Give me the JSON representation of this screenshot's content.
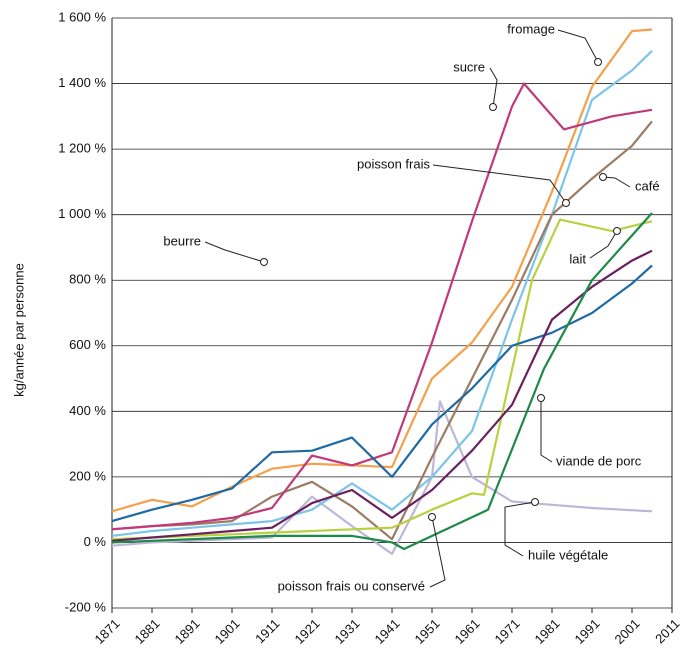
{
  "chart_data": {
    "type": "line",
    "y_label": "kg/année par personne",
    "xlim": [
      1871,
      2011
    ],
    "xticks": [
      1871,
      1881,
      1891,
      1901,
      1911,
      1921,
      1931,
      1941,
      1951,
      1961,
      1971,
      1981,
      1991,
      2001,
      2011
    ],
    "ylim": [
      -200,
      1600
    ],
    "yticks": [
      {
        "value": -200,
        "label": "-200 %"
      },
      {
        "value": 0,
        "label": "0 %"
      },
      {
        "value": 200,
        "label": "200 %"
      },
      {
        "value": 400,
        "label": "400 %"
      },
      {
        "value": 600,
        "label": "600 %"
      },
      {
        "value": 800,
        "label": "800 %"
      },
      {
        "value": 1000,
        "label": "1 000 %"
      },
      {
        "value": 1200,
        "label": "1 200 %"
      },
      {
        "value": 1400,
        "label": "1 400 %"
      },
      {
        "value": 1600,
        "label": "1 600 %"
      }
    ],
    "grid": true,
    "series": [
      {
        "name": "huile végétale",
        "color": "#bdb6d9",
        "x": [
          1871,
          1881,
          1891,
          1901,
          1911,
          1921,
          1931,
          1941,
          1951,
          1953,
          1961,
          1971,
          1981,
          1991,
          2006
        ],
        "values": [
          -10,
          0,
          5,
          10,
          15,
          140,
          50,
          -35,
          200,
          430,
          200,
          125,
          115,
          105,
          95
        ]
      },
      {
        "name": "fromage",
        "color": "#f5a04a",
        "x": [
          1871,
          1881,
          1891,
          1901,
          1911,
          1921,
          1931,
          1941,
          1951,
          1961,
          1971,
          1981,
          1991,
          2001,
          2006
        ],
        "values": [
          95,
          130,
          110,
          170,
          225,
          240,
          235,
          230,
          500,
          610,
          780,
          1070,
          1390,
          1560,
          1565
        ]
      },
      {
        "name": "poisson frais",
        "color": "#7cc4e8",
        "x": [
          1871,
          1881,
          1891,
          1901,
          1911,
          1921,
          1931,
          1941,
          1951,
          1961,
          1971,
          1981,
          1991,
          2001,
          2006
        ],
        "values": [
          20,
          35,
          45,
          55,
          65,
          100,
          180,
          100,
          200,
          340,
          680,
          1000,
          1350,
          1440,
          1500
        ]
      },
      {
        "name": "café",
        "color": "#9c7b62",
        "x": [
          1871,
          1881,
          1891,
          1901,
          1911,
          1921,
          1931,
          1941,
          1951,
          1961,
          1971,
          1981,
          1991,
          2001,
          2006
        ],
        "values": [
          40,
          50,
          55,
          65,
          140,
          185,
          110,
          10,
          260,
          500,
          740,
          1000,
          1110,
          1210,
          1285
        ]
      },
      {
        "name": "sucre",
        "color": "#c0397a",
        "x": [
          1871,
          1881,
          1891,
          1901,
          1911,
          1921,
          1931,
          1941,
          1951,
          1961,
          1971,
          1974,
          1984,
          1996,
          2006
        ],
        "values": [
          40,
          50,
          60,
          75,
          105,
          265,
          235,
          275,
          610,
          980,
          1330,
          1400,
          1260,
          1300,
          1320
        ]
      },
      {
        "name": "lait",
        "color": "#b8d140",
        "x": [
          1871,
          1881,
          1891,
          1901,
          1911,
          1921,
          1931,
          1941,
          1951,
          1961,
          1964,
          1976,
          1983,
          1996,
          2006
        ],
        "values": [
          10,
          15,
          20,
          25,
          30,
          35,
          40,
          45,
          100,
          150,
          145,
          800,
          985,
          950,
          980
        ]
      },
      {
        "name": "beurre",
        "color": "#1f6aa5",
        "x": [
          1871,
          1881,
          1891,
          1901,
          1911,
          1921,
          1931,
          1941,
          1951,
          1961,
          1971,
          1981,
          1991,
          2001,
          2006
        ],
        "values": [
          65,
          100,
          130,
          165,
          275,
          280,
          320,
          200,
          360,
          470,
          600,
          640,
          700,
          790,
          845
        ]
      },
      {
        "name": "poisson frais ou conservé",
        "color": "#6b1f5e",
        "x": [
          1871,
          1881,
          1891,
          1901,
          1911,
          1921,
          1931,
          1941,
          1951,
          1961,
          1971,
          1981,
          1991,
          2001,
          2006
        ],
        "values": [
          5,
          15,
          25,
          35,
          45,
          120,
          160,
          75,
          160,
          280,
          420,
          680,
          780,
          860,
          890
        ]
      },
      {
        "name": "viande de porc",
        "color": "#1e8a4a",
        "x": [
          1871,
          1881,
          1891,
          1901,
          1911,
          1921,
          1931,
          1941,
          1944,
          1965,
          1979,
          1991,
          2006
        ],
        "values": [
          0,
          5,
          10,
          15,
          20,
          20,
          20,
          0,
          -20,
          100,
          530,
          800,
          1005
        ]
      }
    ]
  }
}
